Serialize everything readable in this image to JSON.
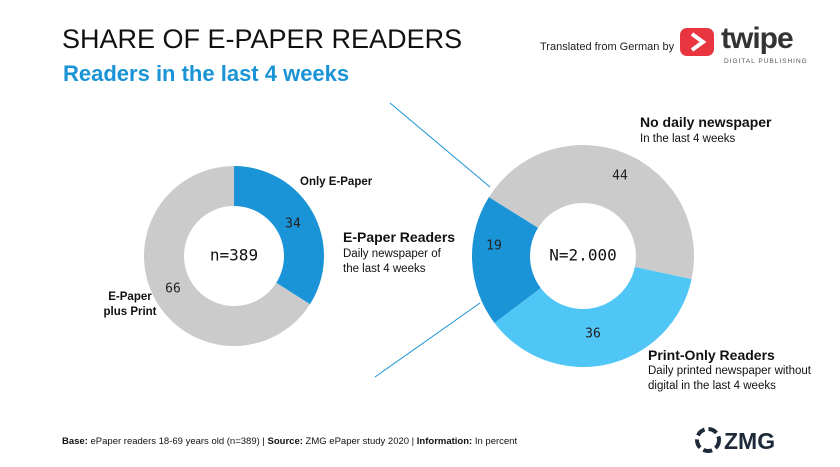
{
  "header": {
    "title": "SHARE OF E-PAPER READERS",
    "subtitle": "Readers in the last 4 weeks",
    "credit": "Translated from German by",
    "logo_name": "twipe",
    "logo_tagline": "DIGITAL PUBLISHING"
  },
  "chart_data": [
    {
      "type": "donut",
      "center_label": "n=389",
      "categories": [
        "Only E-Paper",
        "E-Paper plus Print"
      ],
      "values": [
        34,
        66
      ],
      "colors": [
        "#1a94d6",
        "#cbcbcb"
      ]
    },
    {
      "type": "donut",
      "center_label": "N=2.000",
      "categories": [
        "No daily newspaper",
        "Print-Only Readers",
        "E-Paper Readers"
      ],
      "descriptions": [
        "In the last 4 weeks",
        "Daily printed newspaper without digital in the last 4 weeks",
        "Daily newspaper of the last 4 weeks"
      ],
      "values": [
        44,
        36,
        19
      ],
      "colors": [
        "#cbcbcb",
        "#4fc6f5",
        "#1a94d6"
      ]
    }
  ],
  "footer": {
    "parts": [
      "Base:",
      " ePaper readers 18-69 years old (n=389) | ",
      "Source:",
      " ZMG ePaper study 2020 | ",
      "Information:",
      " In percent"
    ],
    "logo": "ZMG"
  }
}
